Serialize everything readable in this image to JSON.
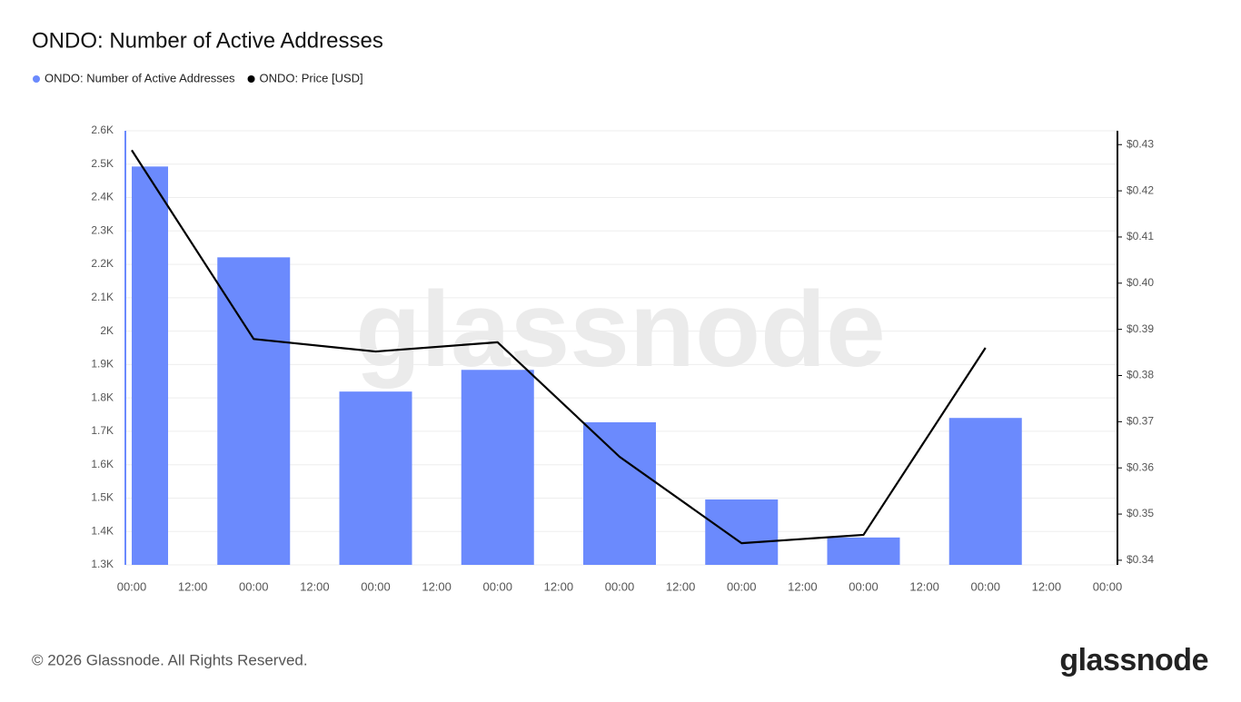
{
  "chart_data": {
    "type": "bar",
    "title": "ONDO: Number of Active Addresses",
    "watermark": "glassnode",
    "footer": "© 2026 Glassnode. All Rights Reserved.",
    "logo": "glassnode",
    "xticks": [
      "00:00",
      "12:00",
      "00:00",
      "12:00",
      "00:00",
      "12:00",
      "00:00",
      "12:00",
      "00:00",
      "12:00",
      "00:00",
      "12:00",
      "00:00",
      "12:00",
      "00:00",
      "12:00",
      "00:00"
    ],
    "ylim": [
      1300,
      2600
    ],
    "yticks": [
      {
        "value": 1300,
        "label": "1.3K"
      },
      {
        "value": 1400,
        "label": "1.4K"
      },
      {
        "value": 1500,
        "label": "1.5K"
      },
      {
        "value": 1600,
        "label": "1.6K"
      },
      {
        "value": 1700,
        "label": "1.7K"
      },
      {
        "value": 1800,
        "label": "1.8K"
      },
      {
        "value": 1900,
        "label": "1.9K"
      },
      {
        "value": 2000,
        "label": "2K"
      },
      {
        "value": 2100,
        "label": "2.1K"
      },
      {
        "value": 2200,
        "label": "2.2K"
      },
      {
        "value": 2300,
        "label": "2.3K"
      },
      {
        "value": 2400,
        "label": "2.4K"
      },
      {
        "value": 2500,
        "label": "2.5K"
      },
      {
        "value": 2600,
        "label": "2.6K"
      }
    ],
    "y2lim": [
      0.339,
      0.433
    ],
    "y2ticks": [
      {
        "value": 0.34,
        "label": "$0.34"
      },
      {
        "value": 0.35,
        "label": "$0.35"
      },
      {
        "value": 0.36,
        "label": "$0.36"
      },
      {
        "value": 0.37,
        "label": "$0.37"
      },
      {
        "value": 0.38,
        "label": "$0.38"
      },
      {
        "value": 0.39,
        "label": "$0.39"
      },
      {
        "value": 0.4,
        "label": "$0.40"
      },
      {
        "value": 0.41,
        "label": "$0.41"
      },
      {
        "value": 0.42,
        "label": "$0.42"
      },
      {
        "value": 0.43,
        "label": "$0.43"
      }
    ],
    "grid": true,
    "series": [
      {
        "name": "ONDO: Number of Active Addresses",
        "type": "bar",
        "color": "#6b8afd",
        "axis": "y",
        "values": [
          2493,
          2221,
          1819,
          1884,
          1727,
          1496,
          1382,
          1740
        ]
      },
      {
        "name": "ONDO: Price [USD]",
        "type": "line",
        "color": "#000000",
        "axis": "y2",
        "values": [
          0.4288,
          0.3879,
          0.3852,
          0.3872,
          0.3624,
          0.3437,
          0.3455,
          0.386
        ]
      }
    ]
  }
}
